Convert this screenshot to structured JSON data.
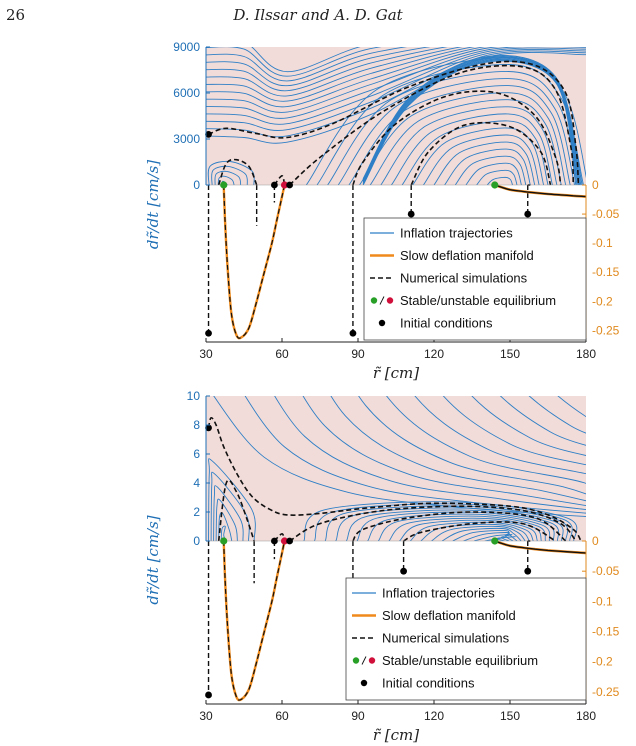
{
  "header": {
    "page_number": "26",
    "running_head": "D. Ilssar and A. D. Gat"
  },
  "colors": {
    "region": "#f2dcd9",
    "inflation": "#2e7fc6",
    "deflation": "#ef8a1b",
    "simulation": "#111111",
    "stable": "#28a028",
    "unstable": "#d0103a",
    "left_axis": "#1f6fb5",
    "right_axis": "#e08a1e"
  },
  "chart_data": [
    {
      "type": "line",
      "id": "top",
      "xlabel": "r̃ [cm]",
      "ylabel": "dr̃/dt [cm/s]",
      "xlim": [
        30,
        180
      ],
      "xticks": [
        30,
        60,
        90,
        120,
        150,
        180
      ],
      "ylim": [
        0,
        9000
      ],
      "yticks": [
        0,
        3000,
        6000,
        9000
      ],
      "y2lim": [
        -0.27,
        0
      ],
      "y2ticks": [
        0,
        -0.05,
        -0.1,
        -0.15,
        -0.2,
        -0.25
      ],
      "legend": {
        "position": "bottom-right",
        "entries": [
          "Inflation trajectories",
          "Slow deflation manifold",
          "Numerical simulations",
          "Stable/unstable equilibrium",
          "Initial conditions"
        ]
      },
      "equilibria": {
        "stable": [
          37,
          144
        ],
        "unstable": [
          61
        ]
      },
      "deflation_manifold": {
        "x": [
          37,
          37.5,
          38.5,
          40,
          42,
          44,
          47,
          50,
          53,
          56,
          58,
          60,
          61
        ],
        "y": [
          0,
          -0.06,
          -0.14,
          -0.22,
          -0.258,
          -0.262,
          -0.245,
          -0.2,
          -0.15,
          -0.1,
          -0.06,
          -0.02,
          0
        ]
      },
      "tail_manifold": {
        "x": [
          144,
          146,
          150,
          155,
          160,
          165,
          170,
          175,
          180
        ],
        "y": [
          0,
          -0.003,
          -0.008,
          -0.011,
          -0.0135,
          -0.0155,
          -0.017,
          -0.0185,
          -0.02
        ]
      },
      "initial_conditions": {
        "upper": [
          [
            31,
            3300
          ],
          [
            57,
            0
          ],
          [
            63,
            0
          ]
        ],
        "lower": [
          [
            31,
            -0.255
          ],
          [
            88,
            -0.255
          ],
          [
            111,
            -0.05
          ],
          [
            157,
            -0.05
          ]
        ]
      },
      "simulations_upper": [
        {
          "x": [
            31,
            38,
            50,
            62,
            80,
            110,
            140,
            160,
            172,
            176,
            177
          ],
          "y": [
            3300,
            3700,
            3350,
            3100,
            4000,
            6400,
            7900,
            7800,
            6000,
            2500,
            0
          ]
        },
        {
          "x": [
            35,
            38,
            42,
            47,
            50
          ],
          "y": [
            0,
            1400,
            1650,
            1200,
            0
          ]
        },
        {
          "x": [
            57,
            60,
            61
          ],
          "y": [
            0,
            600,
            0
          ]
        },
        {
          "x": [
            63,
            75,
            100,
            130,
            155,
            168,
            174,
            175
          ],
          "y": [
            0,
            1800,
            4800,
            7300,
            7700,
            6200,
            2500,
            0
          ]
        },
        {
          "x": [
            88,
            92,
            105,
            125,
            145,
            160,
            168,
            170
          ],
          "y": [
            0,
            1500,
            4000,
            5800,
            6000,
            4500,
            1800,
            0
          ]
        },
        {
          "x": [
            111,
            118,
            132,
            150,
            162,
            166
          ],
          "y": [
            0,
            2200,
            3900,
            3800,
            2200,
            0
          ]
        },
        {
          "x": [
            157,
            158
          ],
          "y": [
            0,
            0
          ]
        }
      ],
      "simulations_lower": [
        {
          "x": [
            31,
            31
          ],
          "y": [
            0,
            -0.255
          ]
        },
        {
          "x": [
            50,
            50
          ],
          "y": [
            0,
            -0.07
          ]
        },
        {
          "x": [
            57,
            57
          ],
          "y": [
            0,
            -0.03
          ]
        },
        {
          "x": [
            88,
            88
          ],
          "y": [
            0,
            -0.255
          ]
        },
        {
          "x": [
            111,
            111
          ],
          "y": [
            0,
            -0.05
          ]
        },
        {
          "x": [
            157,
            157
          ],
          "y": [
            0,
            -0.05
          ]
        }
      ]
    },
    {
      "type": "line",
      "id": "bottom",
      "xlabel": "r̃ [cm]",
      "ylabel": "dr̃/dt [cm/s]",
      "xlim": [
        30,
        180
      ],
      "xticks": [
        30,
        60,
        90,
        120,
        150,
        180
      ],
      "ylim": [
        0,
        10
      ],
      "yticks": [
        0,
        2,
        4,
        6,
        8,
        10
      ],
      "y2lim": [
        -0.27,
        0
      ],
      "y2ticks": [
        0,
        -0.05,
        -0.1,
        -0.15,
        -0.2,
        -0.25
      ],
      "legend": {
        "position": "bottom-right",
        "entries": [
          "Inflation trajectories",
          "Slow deflation manifold",
          "Numerical simulations",
          "Stable/unstable equilibrium",
          "Initial conditions"
        ]
      },
      "equilibria": {
        "stable": [
          37,
          144
        ],
        "unstable": [
          61
        ]
      },
      "deflation_manifold": {
        "x": [
          37,
          37.5,
          38.5,
          40,
          42,
          44,
          47,
          50,
          53,
          56,
          58,
          60,
          61
        ],
        "y": [
          0,
          -0.06,
          -0.14,
          -0.22,
          -0.258,
          -0.262,
          -0.245,
          -0.2,
          -0.15,
          -0.1,
          -0.06,
          -0.02,
          0
        ]
      },
      "tail_manifold": {
        "x": [
          144,
          146,
          150,
          155,
          160,
          165,
          170,
          175,
          180
        ],
        "y": [
          0,
          -0.003,
          -0.008,
          -0.011,
          -0.0135,
          -0.0155,
          -0.017,
          -0.0185,
          -0.02
        ]
      },
      "initial_conditions": {
        "upper": [
          [
            31,
            7.8
          ],
          [
            57,
            0
          ],
          [
            63,
            0
          ]
        ],
        "lower": [
          [
            31,
            -0.255
          ],
          [
            88,
            -0.255
          ],
          [
            108,
            -0.05
          ],
          [
            157,
            -0.05
          ]
        ]
      },
      "simulations_upper": [
        {
          "x": [
            31,
            32,
            34,
            37,
            42,
            48,
            55,
            62,
            75,
            95,
            120,
            150,
            165,
            175,
            178
          ],
          "y": [
            7.8,
            8.5,
            8.0,
            6.5,
            4.7,
            3.1,
            2.2,
            1.8,
            1.9,
            2.3,
            2.6,
            2.4,
            1.8,
            0.8,
            0
          ]
        },
        {
          "x": [
            35,
            38,
            42,
            46,
            49
          ],
          "y": [
            0,
            4.0,
            3.4,
            1.6,
            0
          ]
        },
        {
          "x": [
            57,
            60,
            61
          ],
          "y": [
            0,
            0.5,
            0
          ]
        },
        {
          "x": [
            63,
            75,
            100,
            130,
            155,
            170,
            176
          ],
          "y": [
            0,
            1.2,
            2.1,
            2.4,
            2.1,
            1.2,
            0
          ]
        },
        {
          "x": [
            88,
            92,
            110,
            135,
            160,
            172
          ],
          "y": [
            0,
            0.8,
            1.6,
            2.0,
            1.6,
            0
          ]
        },
        {
          "x": [
            108,
            115,
            135,
            155,
            168
          ],
          "y": [
            0,
            0.6,
            1.2,
            1.2,
            0
          ]
        },
        {
          "x": [
            157,
            158
          ],
          "y": [
            0,
            0
          ]
        }
      ],
      "simulations_lower": [
        {
          "x": [
            31,
            31
          ],
          "y": [
            0,
            -0.255
          ]
        },
        {
          "x": [
            49,
            49
          ],
          "y": [
            0,
            -0.07
          ]
        },
        {
          "x": [
            57,
            57
          ],
          "y": [
            0,
            -0.03
          ]
        },
        {
          "x": [
            88,
            88
          ],
          "y": [
            0,
            -0.255
          ]
        },
        {
          "x": [
            108,
            108
          ],
          "y": [
            0,
            -0.05
          ]
        },
        {
          "x": [
            157,
            157
          ],
          "y": [
            0,
            -0.05
          ]
        }
      ]
    }
  ]
}
